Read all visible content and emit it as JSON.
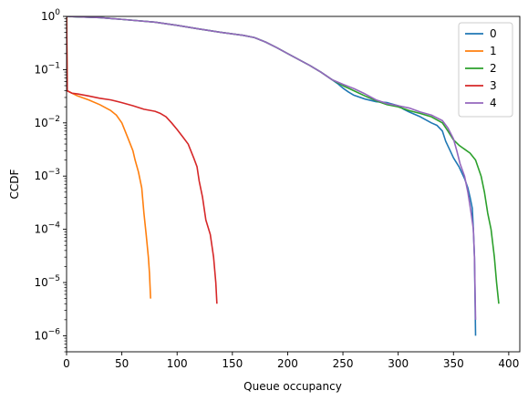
{
  "chart_data": {
    "type": "line",
    "xlabel": "Queue occupancy",
    "ylabel": "CCDF",
    "xscale": "linear",
    "yscale": "log",
    "xlim": [
      0,
      410
    ],
    "ylim": [
      5e-07,
      1
    ],
    "x_ticks": [
      0,
      50,
      100,
      150,
      200,
      250,
      300,
      350,
      400
    ],
    "y_ticks": [
      {
        "value": 1e-06,
        "base": "10",
        "exp": "−6"
      },
      {
        "value": 1e-05,
        "base": "10",
        "exp": "−5"
      },
      {
        "value": 0.0001,
        "base": "10",
        "exp": "−4"
      },
      {
        "value": 0.001,
        "base": "10",
        "exp": "−3"
      },
      {
        "value": 0.01,
        "base": "10",
        "exp": "−2"
      },
      {
        "value": 0.1,
        "base": "10",
        "exp": "−1"
      },
      {
        "value": 1,
        "base": "10",
        "exp": "0"
      }
    ],
    "grid": false,
    "legend_position": "top-right",
    "series": [
      {
        "name": "0",
        "color": "#1f77b4",
        "points": [
          [
            0,
            1
          ],
          [
            10,
            0.98
          ],
          [
            30,
            0.95
          ],
          [
            50,
            0.88
          ],
          [
            80,
            0.78
          ],
          [
            100,
            0.68
          ],
          [
            120,
            0.58
          ],
          [
            140,
            0.5
          ],
          [
            160,
            0.44
          ],
          [
            170,
            0.4
          ],
          [
            180,
            0.33
          ],
          [
            190,
            0.26
          ],
          [
            200,
            0.2
          ],
          [
            210,
            0.155
          ],
          [
            220,
            0.12
          ],
          [
            230,
            0.09
          ],
          [
            240,
            0.065
          ],
          [
            245,
            0.055
          ],
          [
            250,
            0.045
          ],
          [
            255,
            0.038
          ],
          [
            260,
            0.033
          ],
          [
            270,
            0.028
          ],
          [
            280,
            0.025
          ],
          [
            290,
            0.024
          ],
          [
            300,
            0.021
          ],
          [
            305,
            0.018
          ],
          [
            310,
            0.016
          ],
          [
            320,
            0.013
          ],
          [
            330,
            0.01
          ],
          [
            335,
            0.009
          ],
          [
            340,
            0.007
          ],
          [
            343,
            0.0045
          ],
          [
            347,
            0.003
          ],
          [
            350,
            0.0022
          ],
          [
            355,
            0.0015
          ],
          [
            360,
            0.0009
          ],
          [
            363,
            0.0006
          ],
          [
            365,
            0.0004
          ],
          [
            367,
            0.00025
          ],
          [
            368,
            0.0001
          ],
          [
            369,
            3e-05
          ],
          [
            370,
            1e-06
          ]
        ]
      },
      {
        "name": "1",
        "color": "#ff7f0e",
        "points": [
          [
            0,
            1
          ],
          [
            0.6,
            0.04
          ],
          [
            5,
            0.036
          ],
          [
            10,
            0.032
          ],
          [
            20,
            0.027
          ],
          [
            30,
            0.022
          ],
          [
            40,
            0.017
          ],
          [
            45,
            0.014
          ],
          [
            50,
            0.01
          ],
          [
            55,
            0.0055
          ],
          [
            60,
            0.003
          ],
          [
            62,
            0.002
          ],
          [
            65,
            0.0012
          ],
          [
            68,
            0.0006
          ],
          [
            70,
            0.0002
          ],
          [
            72,
            8e-05
          ],
          [
            74,
            3e-05
          ],
          [
            75,
            1.5e-05
          ],
          [
            76,
            5e-06
          ]
        ]
      },
      {
        "name": "2",
        "color": "#2ca02c",
        "points": [
          [
            0,
            1
          ],
          [
            10,
            0.98
          ],
          [
            30,
            0.95
          ],
          [
            50,
            0.88
          ],
          [
            80,
            0.78
          ],
          [
            100,
            0.68
          ],
          [
            120,
            0.58
          ],
          [
            140,
            0.5
          ],
          [
            160,
            0.44
          ],
          [
            170,
            0.4
          ],
          [
            180,
            0.33
          ],
          [
            190,
            0.26
          ],
          [
            200,
            0.2
          ],
          [
            210,
            0.155
          ],
          [
            220,
            0.12
          ],
          [
            230,
            0.09
          ],
          [
            240,
            0.065
          ],
          [
            250,
            0.05
          ],
          [
            260,
            0.04
          ],
          [
            270,
            0.032
          ],
          [
            280,
            0.026
          ],
          [
            290,
            0.022
          ],
          [
            300,
            0.02
          ],
          [
            310,
            0.017
          ],
          [
            320,
            0.015
          ],
          [
            330,
            0.013
          ],
          [
            340,
            0.01
          ],
          [
            345,
            0.007
          ],
          [
            350,
            0.0048
          ],
          [
            355,
            0.0038
          ],
          [
            360,
            0.0032
          ],
          [
            365,
            0.0027
          ],
          [
            370,
            0.002
          ],
          [
            375,
            0.001
          ],
          [
            378,
            0.0005
          ],
          [
            381,
            0.0002
          ],
          [
            384,
            0.0001
          ],
          [
            387,
            3e-05
          ],
          [
            389,
            1e-05
          ],
          [
            391,
            4e-06
          ]
        ]
      },
      {
        "name": "3",
        "color": "#d62728",
        "points": [
          [
            0,
            1
          ],
          [
            0.6,
            0.04
          ],
          [
            5,
            0.036
          ],
          [
            10,
            0.035
          ],
          [
            20,
            0.032
          ],
          [
            30,
            0.029
          ],
          [
            40,
            0.027
          ],
          [
            50,
            0.024
          ],
          [
            60,
            0.021
          ],
          [
            70,
            0.018
          ],
          [
            80,
            0.0165
          ],
          [
            85,
            0.015
          ],
          [
            90,
            0.013
          ],
          [
            95,
            0.01
          ],
          [
            100,
            0.0075
          ],
          [
            105,
            0.0055
          ],
          [
            110,
            0.004
          ],
          [
            115,
            0.0022
          ],
          [
            118,
            0.0015
          ],
          [
            120,
            0.0008
          ],
          [
            123,
            0.0004
          ],
          [
            126,
            0.00015
          ],
          [
            130,
            8e-05
          ],
          [
            133,
            3e-05
          ],
          [
            135,
            1e-05
          ],
          [
            136,
            4e-06
          ]
        ]
      },
      {
        "name": "4",
        "color": "#9467bd",
        "points": [
          [
            0,
            1
          ],
          [
            10,
            0.98
          ],
          [
            30,
            0.95
          ],
          [
            50,
            0.88
          ],
          [
            80,
            0.78
          ],
          [
            100,
            0.68
          ],
          [
            120,
            0.58
          ],
          [
            140,
            0.5
          ],
          [
            160,
            0.44
          ],
          [
            170,
            0.4
          ],
          [
            180,
            0.33
          ],
          [
            190,
            0.26
          ],
          [
            200,
            0.2
          ],
          [
            210,
            0.155
          ],
          [
            220,
            0.12
          ],
          [
            230,
            0.09
          ],
          [
            240,
            0.065
          ],
          [
            250,
            0.053
          ],
          [
            260,
            0.044
          ],
          [
            270,
            0.035
          ],
          [
            280,
            0.027
          ],
          [
            290,
            0.023
          ],
          [
            300,
            0.021
          ],
          [
            310,
            0.019
          ],
          [
            320,
            0.016
          ],
          [
            330,
            0.014
          ],
          [
            340,
            0.011
          ],
          [
            345,
            0.008
          ],
          [
            350,
            0.005
          ],
          [
            353,
            0.003
          ],
          [
            356,
            0.0017
          ],
          [
            360,
            0.001
          ],
          [
            363,
            0.0005
          ],
          [
            366,
            0.0002
          ],
          [
            368,
            0.0001
          ],
          [
            369,
            3e-05
          ],
          [
            370,
            2e-06
          ]
        ]
      }
    ]
  }
}
